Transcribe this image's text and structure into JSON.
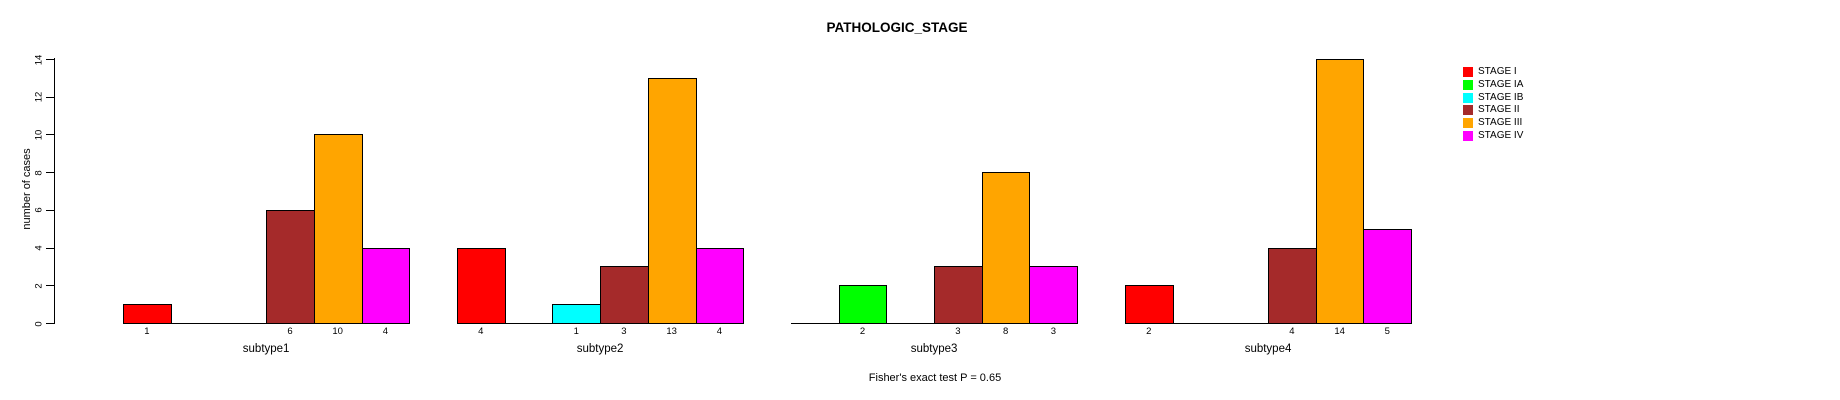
{
  "chart_data": {
    "type": "bar",
    "title": "PATHOLOGIC_STAGE",
    "ylabel": "number of cases",
    "footer": "Fisher's exact test P = 0.65",
    "categories": [
      "subtype1",
      "subtype2",
      "subtype3",
      "subtype4"
    ],
    "series": [
      {
        "name": "STAGE I",
        "color": "#FF0000",
        "values": [
          1,
          4,
          0,
          2
        ]
      },
      {
        "name": "STAGE IA",
        "color": "#00FF00",
        "values": [
          0,
          0,
          2,
          0
        ]
      },
      {
        "name": "STAGE IB",
        "color": "#00FFFF",
        "values": [
          0,
          1,
          0,
          0
        ]
      },
      {
        "name": "STAGE II",
        "color": "#A52A2A",
        "values": [
          6,
          3,
          3,
          4
        ]
      },
      {
        "name": "STAGE III",
        "color": "#FFA500",
        "values": [
          10,
          13,
          8,
          14
        ]
      },
      {
        "name": "STAGE IV",
        "color": "#FF00FF",
        "values": [
          4,
          4,
          3,
          5
        ]
      }
    ],
    "ylim": [
      0,
      14
    ],
    "yticks": [
      0,
      2,
      4,
      6,
      8,
      10,
      12,
      14
    ],
    "bar_value_labels": true,
    "legend_position": "right",
    "grid": false,
    "background": "#FFFFFF",
    "axis_color": "#000000"
  }
}
